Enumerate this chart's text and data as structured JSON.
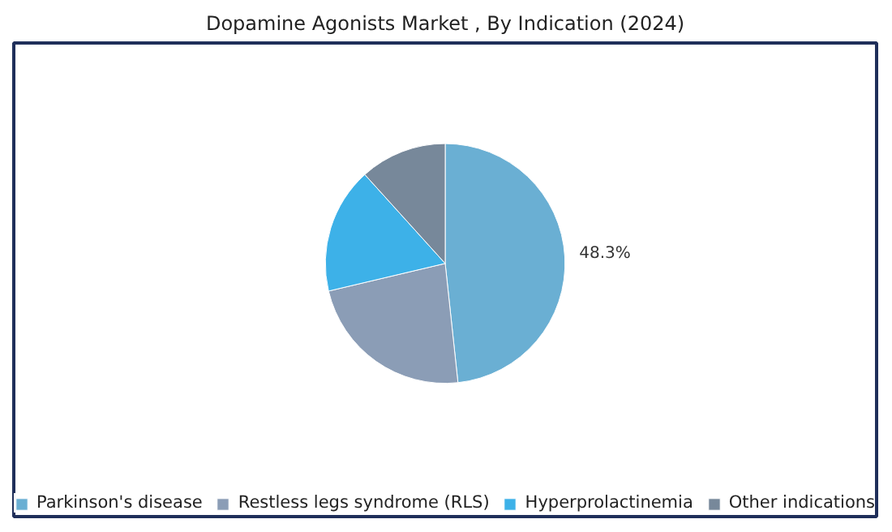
{
  "chart_data": {
    "type": "pie",
    "title": "Dopamine Agonists Market , By Indication (2024)",
    "categories": [
      "Parkinson's disease",
      "Restless legs syndrome (RLS)",
      "Hyperprolactinemia",
      "Other indications"
    ],
    "values": [
      48.3,
      23,
      17,
      11.7
    ],
    "value_labels": [
      "48.3%",
      null,
      null,
      null
    ],
    "colors": [
      "#6aafd3",
      "#8b9db6",
      "#3db1e8",
      "#77889a"
    ],
    "legend": "bottom"
  }
}
